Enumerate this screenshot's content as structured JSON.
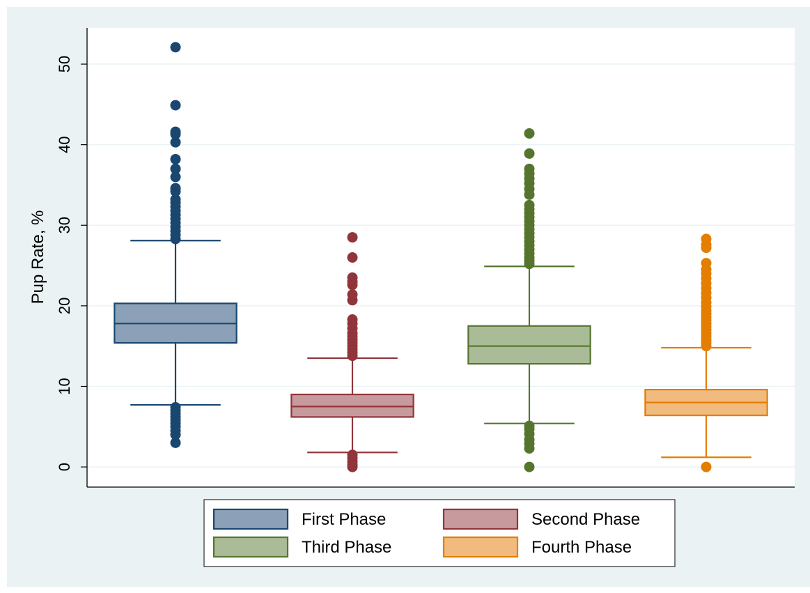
{
  "chart_data": {
    "type": "box",
    "title": "",
    "xlabel": "",
    "ylabel": "Pup Rate, %",
    "ylim": [
      -2.5,
      54.5
    ],
    "yticks": [
      0,
      10,
      20,
      30,
      40,
      50
    ],
    "grid": true,
    "legend_position": "bottom",
    "series": [
      {
        "name": "First Phase",
        "color": "#1a476f",
        "fill": "#8ca1b7",
        "whisker_low": 7.7,
        "q1": 15.4,
        "median": 17.8,
        "q3": 20.3,
        "whisker_high": 28.1,
        "outliers": [
          3.0,
          4.0,
          4.5,
          5.0,
          5.4,
          5.8,
          6.2,
          6.6,
          7.0,
          7.4,
          28.3,
          28.8,
          29.3,
          29.8,
          30.3,
          30.8,
          31.3,
          31.8,
          32.3,
          32.8,
          33.2,
          34.2,
          34.6,
          36.0,
          37.0,
          38.2,
          40.3,
          41.3,
          41.6,
          44.9,
          52.1
        ]
      },
      {
        "name": "Second Phase",
        "color": "#90353b",
        "fill": "#c79a9d",
        "whisker_low": 1.8,
        "q1": 6.2,
        "median": 7.5,
        "q3": 9.0,
        "whisker_high": 13.5,
        "outliers": [
          0.0,
          0.3,
          0.7,
          1.1,
          1.5,
          13.8,
          14.2,
          14.6,
          15.0,
          15.4,
          15.8,
          16.2,
          16.6,
          17.2,
          17.8,
          18.3,
          20.7,
          21.4,
          22.6,
          23.0,
          23.5,
          26.0,
          28.5
        ]
      },
      {
        "name": "Third Phase",
        "color": "#55752f",
        "fill": "#aabb97",
        "whisker_low": 5.4,
        "q1": 12.8,
        "median": 15.0,
        "q3": 17.5,
        "whisker_high": 24.9,
        "outliers": [
          0.0,
          2.3,
          2.9,
          3.4,
          4.1,
          4.7,
          5.1,
          25.2,
          25.6,
          26.0,
          26.5,
          27.0,
          27.5,
          28.0,
          28.5,
          29.0,
          29.5,
          30.0,
          30.5,
          31.0,
          31.5,
          32.0,
          32.5,
          33.8,
          34.5,
          35.2,
          35.8,
          36.4,
          37.0,
          38.9,
          41.4
        ]
      },
      {
        "name": "Fourth Phase",
        "color": "#e37e00",
        "fill": "#f1ba7f",
        "whisker_low": 1.2,
        "q1": 6.4,
        "median": 8.0,
        "q3": 9.6,
        "whisker_high": 14.8,
        "outliers": [
          0.0,
          15.0,
          15.4,
          15.8,
          16.2,
          16.6,
          17.0,
          17.4,
          17.8,
          18.2,
          18.6,
          19.0,
          19.4,
          19.9,
          20.4,
          21.0,
          21.6,
          22.2,
          22.8,
          23.4,
          24.0,
          24.5,
          25.3,
          27.2,
          27.6,
          28.3
        ]
      }
    ]
  }
}
